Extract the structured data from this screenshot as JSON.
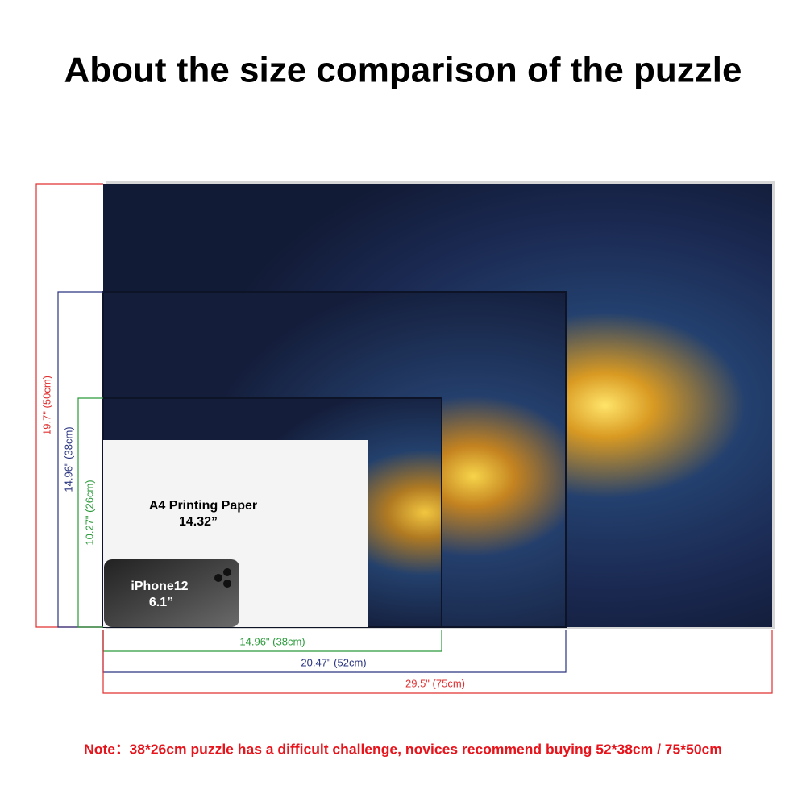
{
  "title": "About the size comparison of the puzzle",
  "heights": [
    "19.7\" (50cm)",
    "14.96\" (38cm)",
    "10.27\" (26cm)"
  ],
  "widths": [
    "14.96\" (38cm)",
    "20.47\" (52cm)",
    "29.5\" (75cm)"
  ],
  "paper": {
    "label": "A4 Printing Paper",
    "size": "14.32”"
  },
  "phone": {
    "model": "iPhone12",
    "size": "6.1”"
  },
  "note": "Note：38*26cm puzzle has a difficult challenge, novices recommend buying 52*38cm / 75*50cm"
}
